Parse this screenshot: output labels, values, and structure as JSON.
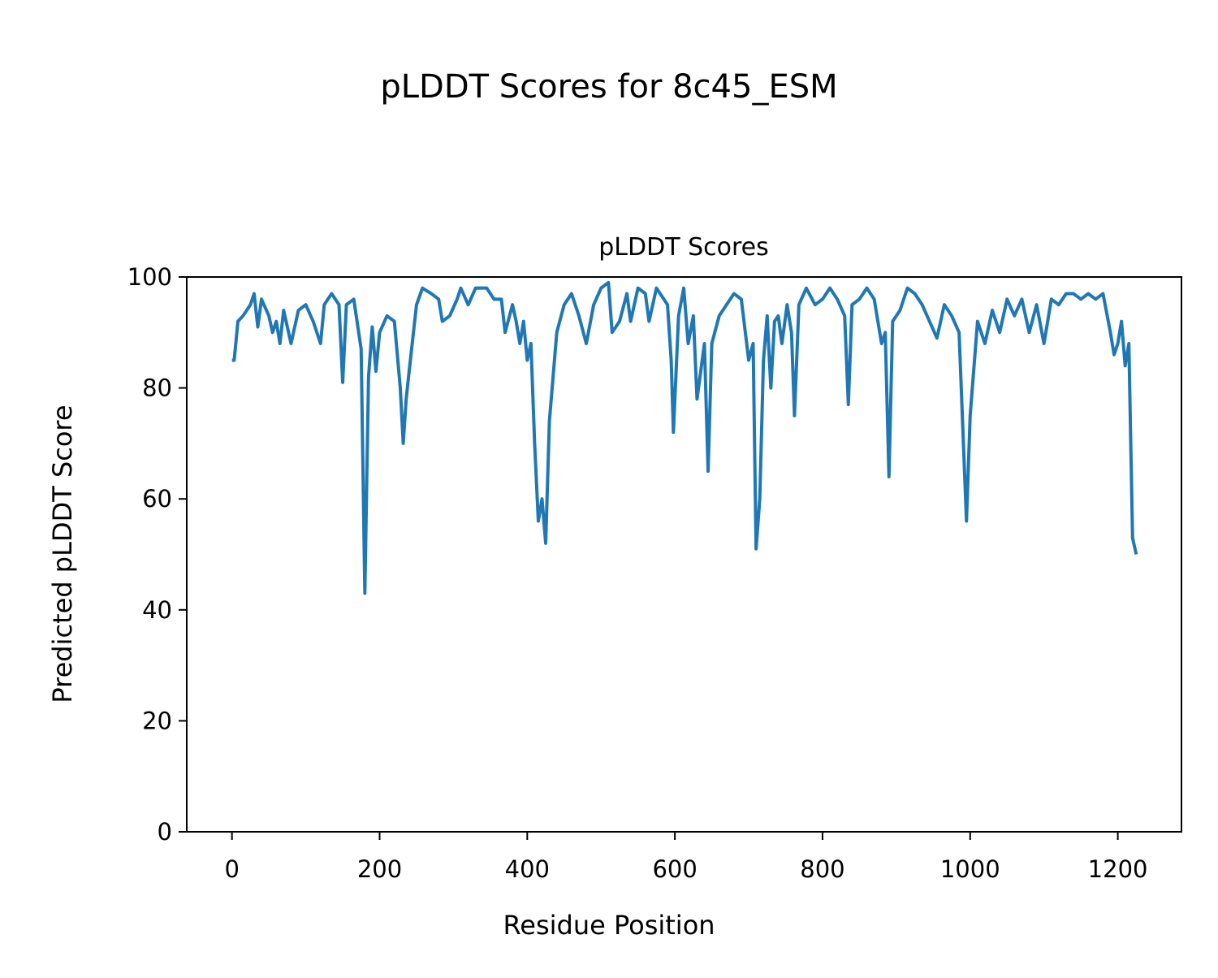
{
  "chart_data": {
    "type": "line",
    "title": "pLDDT Scores for 8c45_ESM",
    "subtitle": "pLDDT Scores",
    "x_label": "Residue Position",
    "y_label": "Predicted pLDDT Score",
    "x": [
      0,
      3,
      8,
      15,
      25,
      30,
      35,
      40,
      50,
      55,
      60,
      65,
      70,
      80,
      90,
      100,
      110,
      120,
      125,
      135,
      145,
      150,
      155,
      165,
      175,
      180,
      185,
      190,
      195,
      200,
      210,
      220,
      228,
      232,
      236,
      240,
      250,
      258,
      270,
      280,
      285,
      295,
      305,
      310,
      320,
      330,
      345,
      355,
      365,
      370,
      380,
      385,
      390,
      395,
      400,
      405,
      410,
      415,
      420,
      425,
      430,
      440,
      450,
      460,
      470,
      480,
      490,
      500,
      510,
      515,
      525,
      535,
      540,
      550,
      560,
      565,
      575,
      590,
      595,
      598,
      605,
      612,
      618,
      625,
      630,
      640,
      645,
      650,
      660,
      670,
      680,
      690,
      700,
      706,
      710,
      715,
      720,
      725,
      730,
      735,
      740,
      745,
      752,
      758,
      762,
      768,
      778,
      790,
      800,
      810,
      820,
      830,
      835,
      840,
      850,
      860,
      870,
      880,
      885,
      890,
      895,
      905,
      915,
      925,
      935,
      945,
      955,
      965,
      975,
      985,
      995,
      1000,
      1010,
      1020,
      1030,
      1040,
      1050,
      1060,
      1070,
      1080,
      1090,
      1100,
      1110,
      1120,
      1130,
      1140,
      1150,
      1160,
      1170,
      1180,
      1190,
      1195,
      1200,
      1205,
      1210,
      1215,
      1220,
      1225
    ],
    "series": [
      {
        "name": "pLDDT",
        "color": "#1f77b4",
        "values": [
          85,
          85,
          92,
          93,
          95,
          97,
          91,
          96,
          93,
          90,
          92,
          88,
          94,
          88,
          94,
          95,
          92,
          88,
          95,
          97,
          95,
          81,
          95,
          96,
          87,
          43,
          82,
          91,
          83,
          90,
          93,
          92,
          80,
          70,
          78,
          83,
          95,
          98,
          97,
          96,
          92,
          93,
          96,
          98,
          95,
          98,
          98,
          96,
          96,
          90,
          95,
          92,
          88,
          92,
          85,
          88,
          70,
          56,
          60,
          52,
          74,
          90,
          95,
          97,
          93,
          88,
          95,
          98,
          99,
          90,
          92,
          97,
          92,
          98,
          97,
          92,
          98,
          95,
          85,
          72,
          93,
          98,
          88,
          93,
          78,
          88,
          65,
          88,
          93,
          95,
          97,
          96,
          85,
          88,
          51,
          60,
          85,
          93,
          80,
          92,
          93,
          88,
          95,
          90,
          75,
          95,
          98,
          95,
          96,
          98,
          96,
          93,
          77,
          95,
          96,
          98,
          96,
          88,
          90,
          64,
          92,
          94,
          98,
          97,
          95,
          92,
          89,
          95,
          93,
          90,
          56,
          75,
          92,
          88,
          94,
          90,
          96,
          93,
          96,
          90,
          95,
          88,
          96,
          95,
          97,
          97,
          96,
          97,
          96,
          97,
          90,
          86,
          88,
          92,
          84,
          88,
          53,
          50
        ]
      }
    ],
    "xlim": [
      -61.25,
      1286.25
    ],
    "ylim": [
      0,
      100
    ],
    "xticks": [
      0,
      200,
      400,
      600,
      800,
      1000,
      1200
    ],
    "yticks": [
      0,
      20,
      40,
      60,
      80,
      100
    ]
  }
}
